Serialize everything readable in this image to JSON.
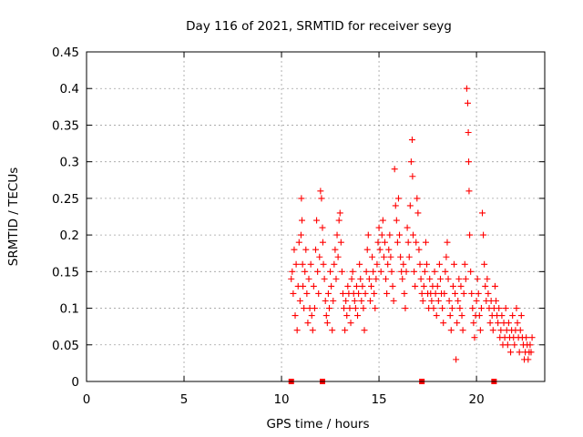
{
  "chart_data": {
    "type": "scatter",
    "title": "Day 116 of 2021, SRMTID for receiver seyg",
    "xlabel": "GPS time / hours",
    "ylabel": "SRMTID / TECUs",
    "xlim": [
      0,
      23.5
    ],
    "ylim": [
      0,
      0.45
    ],
    "xticks": [
      0,
      5,
      10,
      15,
      20
    ],
    "xtick_labels": [
      "0",
      "5",
      "10",
      "15",
      "20"
    ],
    "yticks": [
      0,
      0.05,
      0.1,
      0.15,
      0.2,
      0.25,
      0.3,
      0.35,
      0.4,
      0.45
    ],
    "ytick_labels": [
      "0",
      "0.05",
      "0.1",
      "0.15",
      "0.2",
      "0.25",
      "0.3",
      "0.35",
      "0.4",
      "0.45"
    ],
    "grid": true,
    "marker": "+",
    "color": "#ff0000",
    "baseline_markers_x": [
      10.5,
      12.1,
      17.2,
      20.9
    ],
    "series": [
      {
        "name": "SRMTID",
        "points": [
          [
            10.5,
            0.14
          ],
          [
            10.55,
            0.15
          ],
          [
            10.6,
            0.12
          ],
          [
            10.65,
            0.18
          ],
          [
            10.7,
            0.09
          ],
          [
            10.75,
            0.16
          ],
          [
            10.8,
            0.07
          ],
          [
            10.85,
            0.13
          ],
          [
            10.9,
            0.19
          ],
          [
            10.95,
            0.11
          ],
          [
            11.0,
            0.2
          ],
          [
            11.02,
            0.25
          ],
          [
            11.05,
            0.22
          ],
          [
            11.08,
            0.16
          ],
          [
            11.1,
            0.13
          ],
          [
            11.15,
            0.1
          ],
          [
            11.2,
            0.15
          ],
          [
            11.25,
            0.18
          ],
          [
            11.3,
            0.12
          ],
          [
            11.35,
            0.08
          ],
          [
            11.4,
            0.14
          ],
          [
            11.45,
            0.1
          ],
          [
            11.5,
            0.16
          ],
          [
            11.55,
            0.09
          ],
          [
            11.6,
            0.07
          ],
          [
            11.65,
            0.13
          ],
          [
            11.7,
            0.1
          ],
          [
            11.75,
            0.18
          ],
          [
            11.8,
            0.22
          ],
          [
            11.85,
            0.15
          ],
          [
            11.9,
            0.12
          ],
          [
            11.95,
            0.17
          ],
          [
            12.0,
            0.26
          ],
          [
            12.05,
            0.25
          ],
          [
            12.1,
            0.21
          ],
          [
            12.12,
            0.19
          ],
          [
            12.15,
            0.16
          ],
          [
            12.2,
            0.14
          ],
          [
            12.25,
            0.11
          ],
          [
            12.3,
            0.09
          ],
          [
            12.35,
            0.08
          ],
          [
            12.4,
            0.12
          ],
          [
            12.45,
            0.1
          ],
          [
            12.5,
            0.15
          ],
          [
            12.55,
            0.13
          ],
          [
            12.6,
            0.07
          ],
          [
            12.65,
            0.11
          ],
          [
            12.7,
            0.16
          ],
          [
            12.75,
            0.18
          ],
          [
            12.8,
            0.14
          ],
          [
            12.85,
            0.2
          ],
          [
            12.9,
            0.17
          ],
          [
            12.95,
            0.22
          ],
          [
            13.0,
            0.23
          ],
          [
            13.05,
            0.19
          ],
          [
            13.1,
            0.15
          ],
          [
            13.15,
            0.12
          ],
          [
            13.2,
            0.1
          ],
          [
            13.25,
            0.07
          ],
          [
            13.3,
            0.11
          ],
          [
            13.35,
            0.09
          ],
          [
            13.4,
            0.13
          ],
          [
            13.45,
            0.12
          ],
          [
            13.5,
            0.1
          ],
          [
            13.55,
            0.08
          ],
          [
            13.6,
            0.14
          ],
          [
            13.65,
            0.15
          ],
          [
            13.7,
            0.12
          ],
          [
            13.75,
            0.11
          ],
          [
            13.8,
            0.1
          ],
          [
            13.85,
            0.13
          ],
          [
            13.9,
            0.09
          ],
          [
            13.95,
            0.12
          ],
          [
            14.0,
            0.16
          ],
          [
            14.05,
            0.14
          ],
          [
            14.1,
            0.11
          ],
          [
            14.15,
            0.13
          ],
          [
            14.2,
            0.1
          ],
          [
            14.25,
            0.07
          ],
          [
            14.3,
            0.12
          ],
          [
            14.35,
            0.15
          ],
          [
            14.4,
            0.18
          ],
          [
            14.45,
            0.2
          ],
          [
            14.5,
            0.14
          ],
          [
            14.55,
            0.11
          ],
          [
            14.6,
            0.13
          ],
          [
            14.65,
            0.17
          ],
          [
            14.7,
            0.15
          ],
          [
            14.75,
            0.12
          ],
          [
            14.8,
            0.1
          ],
          [
            14.85,
            0.14
          ],
          [
            14.9,
            0.16
          ],
          [
            14.95,
            0.19
          ],
          [
            15.0,
            0.21
          ],
          [
            15.05,
            0.18
          ],
          [
            15.1,
            0.15
          ],
          [
            15.15,
            0.2
          ],
          [
            15.2,
            0.22
          ],
          [
            15.25,
            0.17
          ],
          [
            15.3,
            0.19
          ],
          [
            15.35,
            0.14
          ],
          [
            15.4,
            0.12
          ],
          [
            15.45,
            0.16
          ],
          [
            15.5,
            0.18
          ],
          [
            15.55,
            0.2
          ],
          [
            15.6,
            0.17
          ],
          [
            15.65,
            0.15
          ],
          [
            15.7,
            0.13
          ],
          [
            15.75,
            0.11
          ],
          [
            15.8,
            0.29
          ],
          [
            15.85,
            0.24
          ],
          [
            15.9,
            0.22
          ],
          [
            15.95,
            0.19
          ],
          [
            16.0,
            0.25
          ],
          [
            16.05,
            0.2
          ],
          [
            16.1,
            0.17
          ],
          [
            16.15,
            0.15
          ],
          [
            16.2,
            0.14
          ],
          [
            16.25,
            0.16
          ],
          [
            16.3,
            0.12
          ],
          [
            16.35,
            0.1
          ],
          [
            16.4,
            0.15
          ],
          [
            16.45,
            0.21
          ],
          [
            16.5,
            0.19
          ],
          [
            16.55,
            0.17
          ],
          [
            16.6,
            0.24
          ],
          [
            16.65,
            0.3
          ],
          [
            16.7,
            0.33
          ],
          [
            16.72,
            0.28
          ],
          [
            16.75,
            0.2
          ],
          [
            16.8,
            0.15
          ],
          [
            16.85,
            0.13
          ],
          [
            16.9,
            0.19
          ],
          [
            16.95,
            0.25
          ],
          [
            17.0,
            0.23
          ],
          [
            17.05,
            0.18
          ],
          [
            17.1,
            0.16
          ],
          [
            17.15,
            0.14
          ],
          [
            17.2,
            0.12
          ],
          [
            17.25,
            0.11
          ],
          [
            17.3,
            0.13
          ],
          [
            17.35,
            0.15
          ],
          [
            17.4,
            0.19
          ],
          [
            17.45,
            0.16
          ],
          [
            17.5,
            0.12
          ],
          [
            17.55,
            0.1
          ],
          [
            17.6,
            0.14
          ],
          [
            17.65,
            0.12
          ],
          [
            17.7,
            0.11
          ],
          [
            17.75,
            0.13
          ],
          [
            17.8,
            0.1
          ],
          [
            17.85,
            0.15
          ],
          [
            17.9,
            0.12
          ],
          [
            17.95,
            0.09
          ],
          [
            18.0,
            0.13
          ],
          [
            18.05,
            0.11
          ],
          [
            18.1,
            0.16
          ],
          [
            18.15,
            0.14
          ],
          [
            18.2,
            0.12
          ],
          [
            18.25,
            0.1
          ],
          [
            18.3,
            0.08
          ],
          [
            18.35,
            0.12
          ],
          [
            18.4,
            0.15
          ],
          [
            18.45,
            0.17
          ],
          [
            18.5,
            0.19
          ],
          [
            18.55,
            0.14
          ],
          [
            18.6,
            0.11
          ],
          [
            18.65,
            0.09
          ],
          [
            18.7,
            0.07
          ],
          [
            18.75,
            0.1
          ],
          [
            18.8,
            0.13
          ],
          [
            18.85,
            0.16
          ],
          [
            18.9,
            0.12
          ],
          [
            18.95,
            0.03
          ],
          [
            19.0,
            0.08
          ],
          [
            19.05,
            0.11
          ],
          [
            19.1,
            0.14
          ],
          [
            19.15,
            0.1
          ],
          [
            19.2,
            0.13
          ],
          [
            19.25,
            0.09
          ],
          [
            19.3,
            0.07
          ],
          [
            19.35,
            0.12
          ],
          [
            19.4,
            0.16
          ],
          [
            19.45,
            0.14
          ],
          [
            19.5,
            0.4
          ],
          [
            19.55,
            0.38
          ],
          [
            19.58,
            0.34
          ],
          [
            19.6,
            0.3
          ],
          [
            19.62,
            0.26
          ],
          [
            19.65,
            0.2
          ],
          [
            19.7,
            0.15
          ],
          [
            19.75,
            0.12
          ],
          [
            19.8,
            0.1
          ],
          [
            19.85,
            0.08
          ],
          [
            19.9,
            0.06
          ],
          [
            19.95,
            0.09
          ],
          [
            20.0,
            0.11
          ],
          [
            20.05,
            0.14
          ],
          [
            20.1,
            0.12
          ],
          [
            20.15,
            0.09
          ],
          [
            20.2,
            0.07
          ],
          [
            20.25,
            0.1
          ],
          [
            20.3,
            0.23
          ],
          [
            20.35,
            0.2
          ],
          [
            20.4,
            0.16
          ],
          [
            20.45,
            0.13
          ],
          [
            20.5,
            0.11
          ],
          [
            20.55,
            0.14
          ],
          [
            20.6,
            0.12
          ],
          [
            20.65,
            0.1
          ],
          [
            20.7,
            0.08
          ],
          [
            20.75,
            0.11
          ],
          [
            20.8,
            0.09
          ],
          [
            20.85,
            0.07
          ],
          [
            20.9,
            0.1
          ],
          [
            20.95,
            0.13
          ],
          [
            21.0,
            0.11
          ],
          [
            21.05,
            0.09
          ],
          [
            21.1,
            0.08
          ],
          [
            21.15,
            0.1
          ],
          [
            21.2,
            0.06
          ],
          [
            21.25,
            0.07
          ],
          [
            21.3,
            0.09
          ],
          [
            21.35,
            0.05
          ],
          [
            21.4,
            0.08
          ],
          [
            21.45,
            0.06
          ],
          [
            21.5,
            0.1
          ],
          [
            21.55,
            0.07
          ],
          [
            21.6,
            0.05
          ],
          [
            21.65,
            0.08
          ],
          [
            21.7,
            0.06
          ],
          [
            21.75,
            0.04
          ],
          [
            21.8,
            0.07
          ],
          [
            21.85,
            0.09
          ],
          [
            21.9,
            0.06
          ],
          [
            21.95,
            0.05
          ],
          [
            22.0,
            0.07
          ],
          [
            22.05,
            0.1
          ],
          [
            22.1,
            0.08
          ],
          [
            22.15,
            0.06
          ],
          [
            22.2,
            0.04
          ],
          [
            22.25,
            0.07
          ],
          [
            22.3,
            0.09
          ],
          [
            22.35,
            0.06
          ],
          [
            22.4,
            0.05
          ],
          [
            22.45,
            0.03
          ],
          [
            22.5,
            0.04
          ],
          [
            22.55,
            0.06
          ],
          [
            22.6,
            0.05
          ],
          [
            22.65,
            0.03
          ],
          [
            22.7,
            0.04
          ],
          [
            22.75,
            0.05
          ],
          [
            22.8,
            0.04
          ],
          [
            22.85,
            0.06
          ]
        ]
      }
    ]
  }
}
